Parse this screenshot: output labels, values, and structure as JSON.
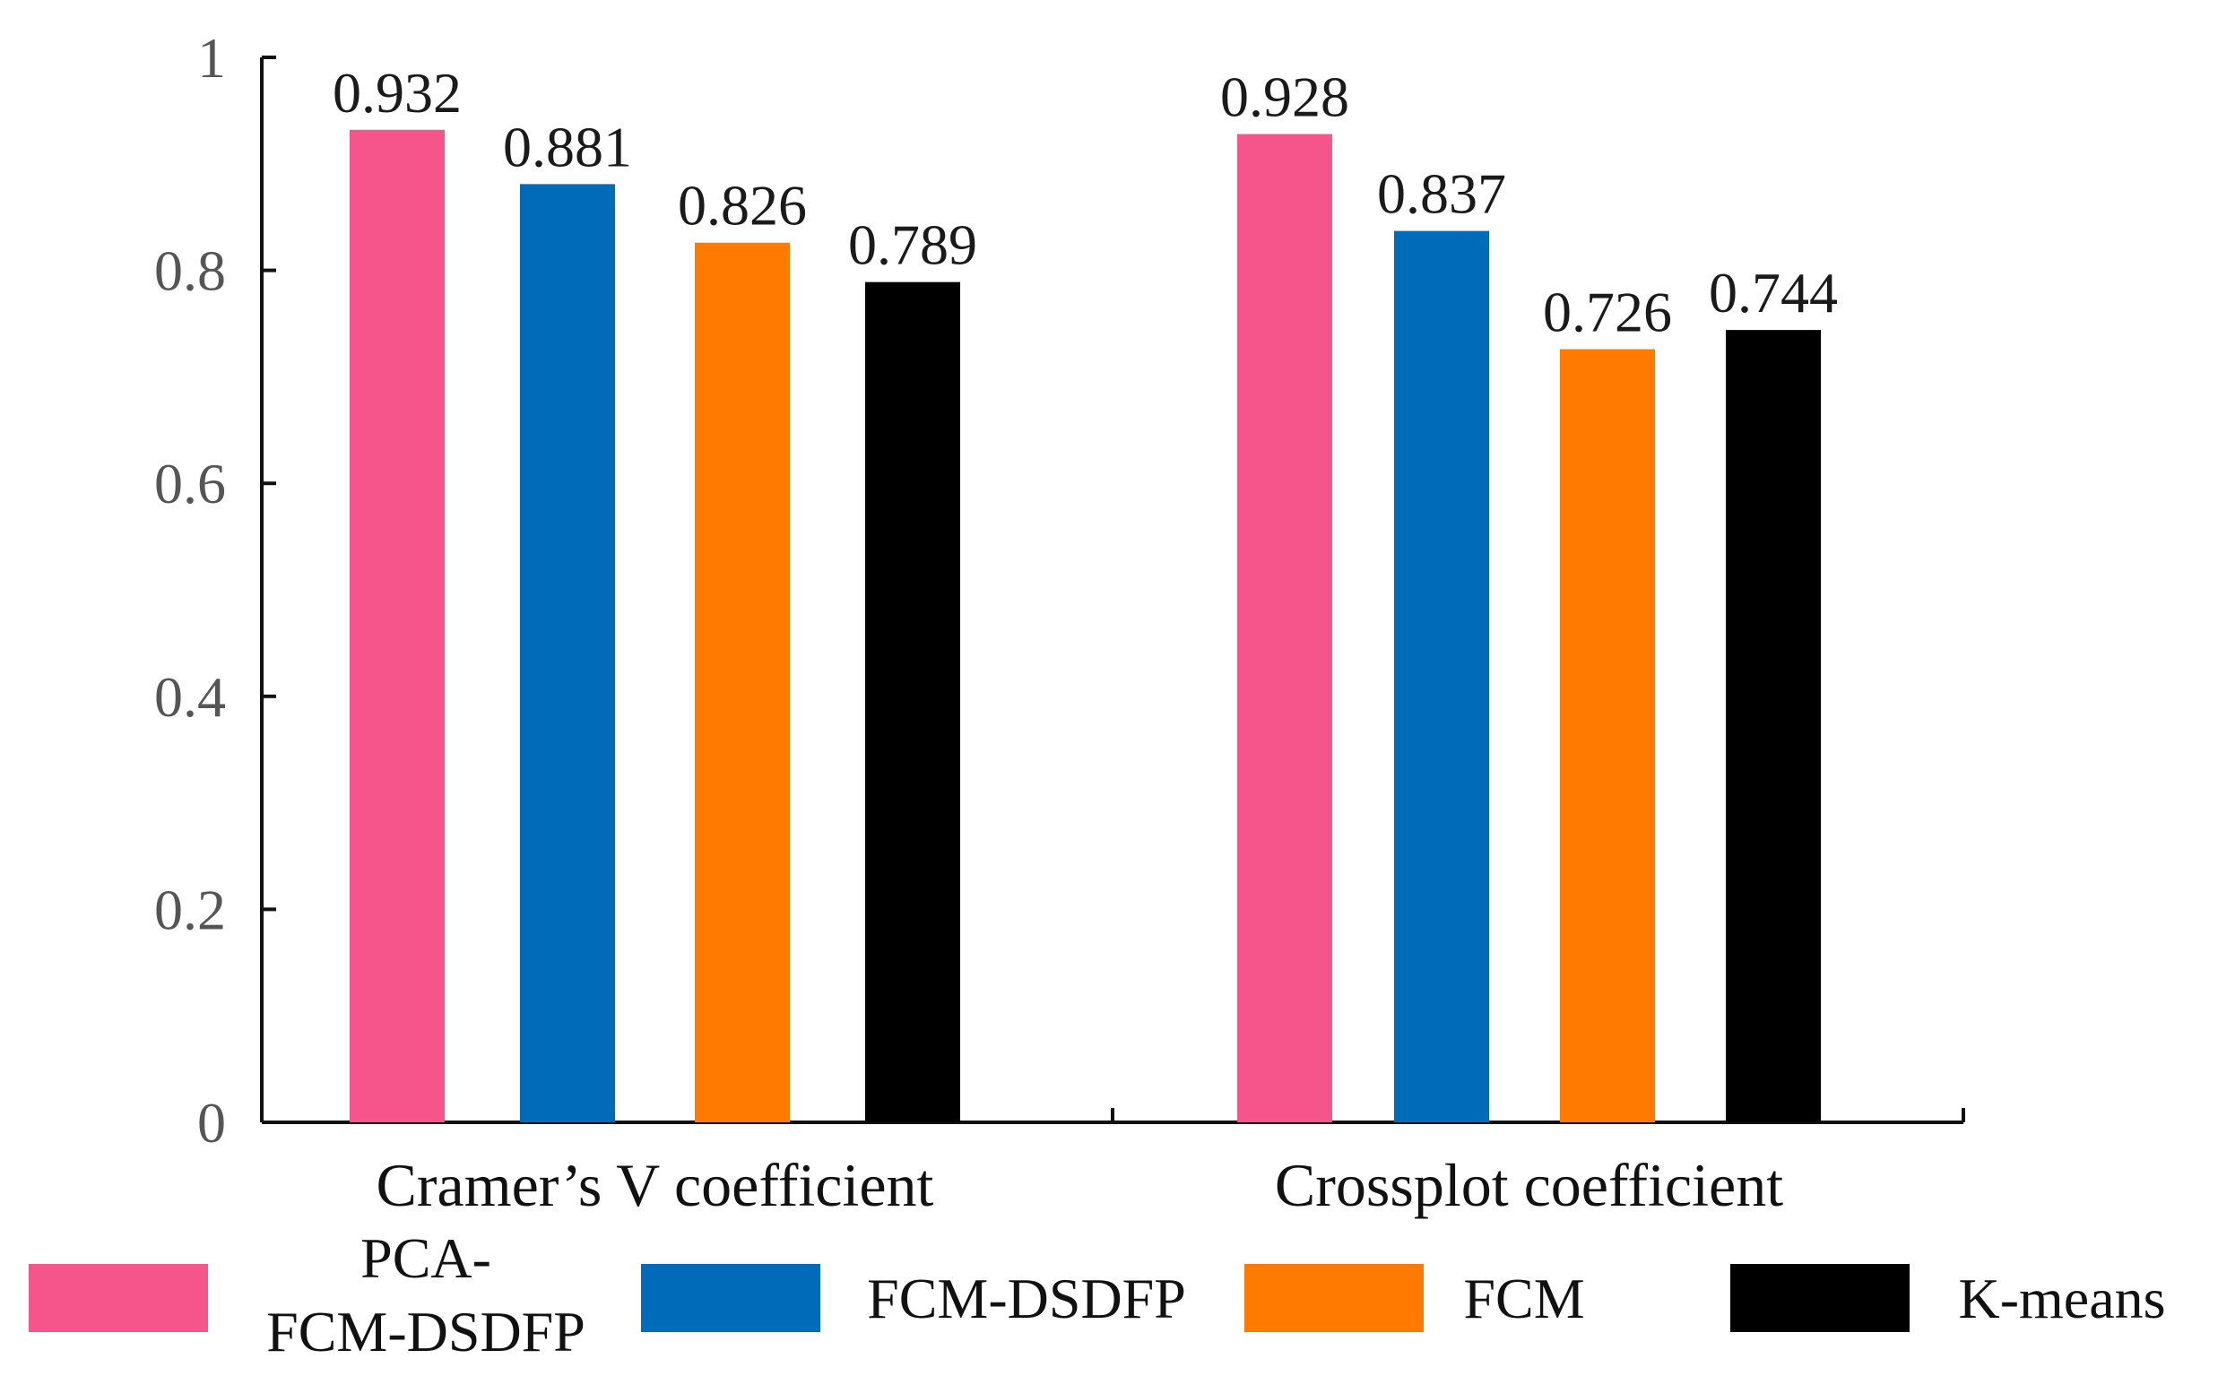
{
  "chart_data": {
    "type": "bar",
    "categories": [
      "Cramer’s V coefficient",
      "Crossplot coefficient"
    ],
    "series": [
      {
        "name": "PCA-FCM-DSDFP",
        "legend_lines": [
          "PCA-",
          "FCM-DSDFP"
        ],
        "color": "#F5558A",
        "values": [
          0.932,
          0.928
        ]
      },
      {
        "name": "FCM-DSDFP",
        "legend_lines": [
          "FCM-DSDFP"
        ],
        "color": "#006BB8",
        "values": [
          0.881,
          0.837
        ]
      },
      {
        "name": "FCM",
        "legend_lines": [
          "FCM"
        ],
        "color": "#FF7A00",
        "values": [
          0.826,
          0.726
        ]
      },
      {
        "name": "K-means",
        "legend_lines": [
          "K-means"
        ],
        "color": "#000000",
        "values": [
          0.789,
          0.744
        ]
      }
    ],
    "ylim": [
      0,
      1
    ],
    "yticks": [
      0,
      0.2,
      0.4,
      0.6,
      0.8,
      1
    ],
    "ytick_labels": [
      "0",
      "0.2",
      "0.4",
      "0.6",
      "0.8",
      "1"
    ],
    "grid": false,
    "legend_position": "bottom",
    "title": "",
    "xlabel": "",
    "ylabel": ""
  }
}
